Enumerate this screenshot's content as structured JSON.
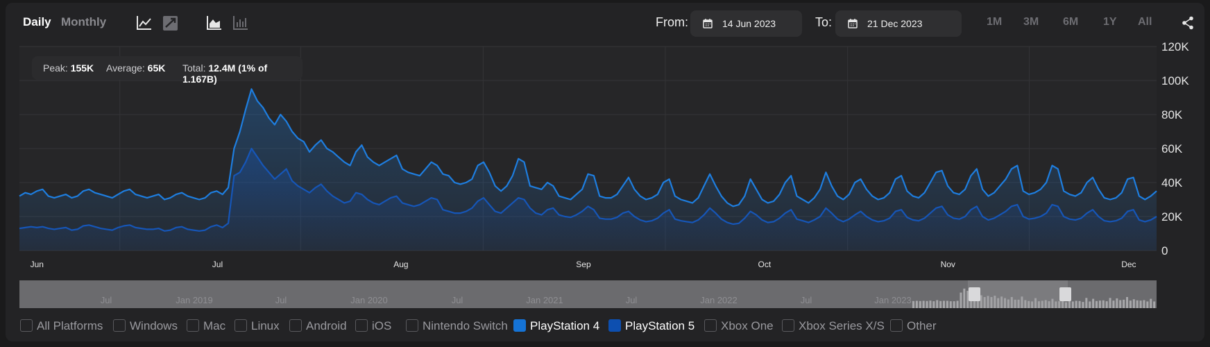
{
  "tabs": {
    "daily": "Daily",
    "monthly": "Monthly"
  },
  "icons": {
    "line_chart": "line-chart-icon",
    "scatter_chart": "scatter-chart-icon",
    "area_chart": "area-chart-icon",
    "bar_chart": "bar-chart-icon",
    "calendar": "calendar-icon",
    "share": "share-icon"
  },
  "date_range": {
    "from_label": "From:",
    "from_value": "14 Jun 2023",
    "to_label": "To:",
    "to_value": "21 Dec 2023"
  },
  "range_buttons": [
    "1M",
    "3M",
    "6M",
    "1Y",
    "All"
  ],
  "stats": {
    "peak_label": "Peak:",
    "peak_value": "155K",
    "avg_label": "Average:",
    "avg_value": "65K",
    "total_label": "Total:",
    "total_value": "12.4M (1% of 1.167B)"
  },
  "colors": {
    "ps4": "#1e7ee0",
    "ps5": "#1656b8",
    "background": "#232325",
    "grid": "#343437"
  },
  "chart_data": {
    "type": "area",
    "ylim": [
      0,
      120000
    ],
    "y_ticks": [
      "0",
      "20K",
      "40K",
      "60K",
      "80K",
      "100K",
      "120K"
    ],
    "x_tick_labels": [
      "Jun",
      "Jul",
      "Aug",
      "Sep",
      "Oct",
      "Nov",
      "Dec"
    ],
    "series": [
      {
        "name": "PlayStation 4",
        "values": [
          32000,
          34000,
          33000,
          35000,
          36000,
          32000,
          31000,
          32000,
          33000,
          31000,
          32000,
          35000,
          36000,
          34000,
          33000,
          32000,
          31000,
          33000,
          35000,
          36000,
          33000,
          32000,
          31000,
          32000,
          33000,
          30000,
          31000,
          33000,
          34000,
          32000,
          31000,
          30000,
          31000,
          34000,
          35000,
          33000,
          37000,
          60000,
          70000,
          83000,
          95000,
          88000,
          84000,
          78000,
          74000,
          80000,
          76000,
          70000,
          66000,
          64000,
          58000,
          62000,
          65000,
          60000,
          58000,
          55000,
          52000,
          50000,
          58000,
          62000,
          55000,
          52000,
          50000,
          52000,
          54000,
          56000,
          48000,
          46000,
          45000,
          44000,
          48000,
          52000,
          50000,
          45000,
          44000,
          40000,
          39000,
          40000,
          42000,
          50000,
          52000,
          46000,
          38000,
          35000,
          38000,
          44000,
          54000,
          52000,
          38000,
          37000,
          36000,
          40000,
          38000,
          32000,
          31000,
          30000,
          33000,
          36000,
          45000,
          44000,
          32000,
          31000,
          31000,
          33000,
          38000,
          43000,
          36000,
          32000,
          30000,
          31000,
          33000,
          40000,
          42000,
          32000,
          30000,
          29000,
          28000,
          31000,
          38000,
          45000,
          38000,
          32000,
          28000,
          26000,
          27000,
          32000,
          42000,
          36000,
          30000,
          28000,
          29000,
          33000,
          40000,
          44000,
          32000,
          30000,
          28000,
          31000,
          36000,
          46000,
          38000,
          32000,
          30000,
          33000,
          40000,
          42000,
          36000,
          32000,
          30000,
          31000,
          34000,
          42000,
          44000,
          35000,
          32000,
          31000,
          34000,
          40000,
          46000,
          47000,
          38000,
          34000,
          33000,
          36000,
          44000,
          48000,
          36000,
          32000,
          34000,
          38000,
          42000,
          48000,
          50000,
          35000,
          33000,
          34000,
          36000,
          40000,
          50000,
          48000,
          35000,
          33000,
          32000,
          34000,
          40000,
          43000,
          36000,
          31000,
          30000,
          31000,
          34000,
          42000,
          43000,
          32000,
          30000,
          32000,
          35000
        ]
      },
      {
        "name": "PlayStation 5",
        "values": [
          13000,
          13500,
          14000,
          13500,
          14000,
          13000,
          12500,
          13000,
          13500,
          12000,
          12500,
          14500,
          15000,
          14000,
          13000,
          12500,
          12000,
          13500,
          14500,
          15000,
          13500,
          13000,
          12500,
          12500,
          13000,
          11500,
          12000,
          13500,
          14000,
          12500,
          12000,
          11500,
          12000,
          14000,
          15000,
          13500,
          16000,
          44000,
          46000,
          52000,
          60000,
          55000,
          50000,
          46000,
          42000,
          45000,
          48000,
          41000,
          38000,
          36000,
          34000,
          37000,
          39000,
          35000,
          32000,
          30000,
          28000,
          29000,
          34000,
          33000,
          30000,
          28000,
          27000,
          29000,
          31000,
          32000,
          28000,
          27000,
          26000,
          27000,
          29000,
          31000,
          30000,
          24000,
          23000,
          22000,
          22000,
          23000,
          25000,
          29000,
          31000,
          27000,
          23000,
          22000,
          25000,
          28000,
          31000,
          30000,
          25000,
          22000,
          21000,
          24000,
          25000,
          21000,
          20000,
          19500,
          21000,
          23000,
          26000,
          24000,
          19000,
          18500,
          18500,
          19500,
          22000,
          23000,
          20000,
          18000,
          17000,
          17500,
          19000,
          22000,
          24000,
          18500,
          17500,
          17000,
          16500,
          18000,
          21000,
          25000,
          22000,
          18500,
          16500,
          15500,
          16000,
          19000,
          23000,
          21000,
          18000,
          16500,
          17000,
          19000,
          22000,
          24000,
          18500,
          17500,
          16500,
          18000,
          20000,
          25000,
          22000,
          18500,
          17000,
          18500,
          21000,
          23000,
          20000,
          18000,
          17000,
          17500,
          19000,
          23000,
          24000,
          19500,
          18000,
          17500,
          19000,
          22000,
          25000,
          26000,
          21000,
          19000,
          18500,
          20000,
          24000,
          26000,
          20000,
          18000,
          19000,
          21000,
          23000,
          26000,
          27000,
          20000,
          18500,
          19000,
          20000,
          22000,
          27000,
          26000,
          20000,
          18500,
          18000,
          19000,
          22000,
          24000,
          20000,
          17500,
          17000,
          17500,
          19000,
          23000,
          24000,
          18000,
          17000,
          18000,
          20000
        ]
      }
    ]
  },
  "navigator": {
    "labels": [
      "Jul",
      "Jan 2019",
      "Jul",
      "Jan 2020",
      "Jul",
      "Jan 2021",
      "Jul",
      "Jan 2022",
      "Jul",
      "Jan 2023"
    ]
  },
  "legend": [
    {
      "label": "All Platforms",
      "checked": false
    },
    {
      "label": "Windows",
      "checked": false
    },
    {
      "label": "Mac",
      "checked": false
    },
    {
      "label": "Linux",
      "checked": false
    },
    {
      "label": "Android",
      "checked": false
    },
    {
      "label": "iOS",
      "checked": false
    },
    {
      "label": "Nintendo Switch",
      "checked": false
    },
    {
      "label": "PlayStation 4",
      "checked": true
    },
    {
      "label": "PlayStation 5",
      "checked": true
    },
    {
      "label": "Xbox One",
      "checked": false
    },
    {
      "label": "Xbox Series X/S",
      "checked": false
    },
    {
      "label": "Other",
      "checked": false
    }
  ]
}
